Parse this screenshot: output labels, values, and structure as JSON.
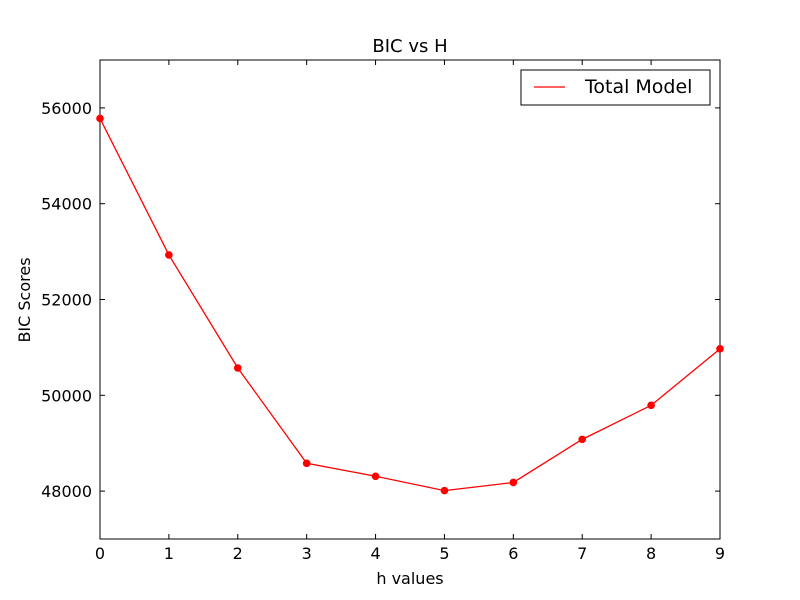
{
  "chart_data": {
    "type": "line",
    "title": "BIC vs H",
    "xlabel": "h values",
    "ylabel": "BIC Scores",
    "xlim": [
      0,
      9
    ],
    "ylim": [
      47000,
      57000
    ],
    "x_ticks": [
      "0",
      "1",
      "2",
      "3",
      "4",
      "5",
      "6",
      "7",
      "8",
      "9"
    ],
    "y_ticks": [
      "48000",
      "50000",
      "52000",
      "54000",
      "56000"
    ],
    "grid": false,
    "legend_position": "top-right",
    "series": [
      {
        "name": "Total Model",
        "color": "#ff0000",
        "marker": "circle",
        "x": [
          0,
          1,
          2,
          3,
          4,
          5,
          6,
          7,
          8,
          9
        ],
        "values": [
          55780,
          52930,
          50570,
          48580,
          48310,
          48010,
          48180,
          49080,
          49790,
          50970
        ]
      }
    ]
  }
}
